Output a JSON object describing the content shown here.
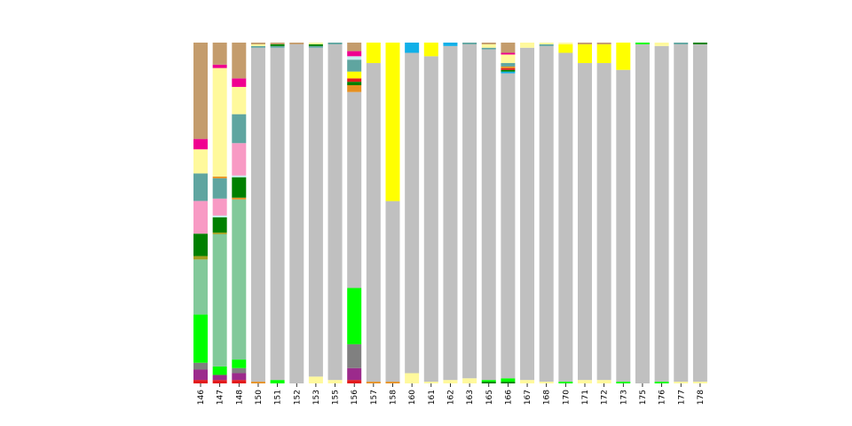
{
  "chart_data": {
    "type": "bar",
    "stacked": true,
    "normalized": true,
    "grid": false,
    "legend": "none",
    "title": "",
    "xlabel": "",
    "ylabel": "",
    "ylim": [
      0,
      1
    ],
    "categories": [
      "146",
      "147",
      "148",
      "150",
      "151",
      "152",
      "153",
      "155",
      "156",
      "157",
      "158",
      "160",
      "161",
      "162",
      "163",
      "165",
      "166",
      "167",
      "168",
      "170",
      "171",
      "172",
      "173",
      "175",
      "176",
      "177",
      "178"
    ],
    "palette": {
      "red": "#e31a1c",
      "purple": "#9c2a8c",
      "gray": "#808080",
      "lime": "#00ff00",
      "mint": "#82c99a",
      "olive": "#a0a020",
      "green": "#008000",
      "orange": "#e69020",
      "pink": "#f89ac4",
      "lightcyan": "#c8f0f0",
      "teal": "#5fa5a0",
      "lightyellow": "#fff99c",
      "yellow": "#ffff00",
      "magenta": "#f00090",
      "tan": "#c49c6c",
      "silver": "#c0c0c0",
      "skyblue": "#10b0e8"
    },
    "segments": [
      [
        [
          "red",
          0.01
        ],
        [
          "purple",
          0.03
        ],
        [
          "gray",
          0.02
        ],
        [
          "lime",
          0.14
        ],
        [
          "mint",
          0.16
        ],
        [
          "olive",
          0.01
        ],
        [
          "green",
          0.065
        ],
        [
          "pink",
          0.095
        ],
        [
          "teal",
          0.08
        ],
        [
          "lightyellow",
          0.07
        ],
        [
          "magenta",
          0.03
        ],
        [
          "tan",
          0.28
        ]
      ],
      [
        [
          "red",
          0.01
        ],
        [
          "purple",
          0.015
        ],
        [
          "lime",
          0.025
        ],
        [
          "mint",
          0.39
        ],
        [
          "olive",
          0.005
        ],
        [
          "green",
          0.045
        ],
        [
          "lightcyan",
          0.005
        ],
        [
          "pink",
          0.05
        ],
        [
          "teal",
          0.06
        ],
        [
          "orange",
          0.005
        ],
        [
          "lightyellow",
          0.32
        ],
        [
          "magenta",
          0.01
        ],
        [
          "tan",
          0.065
        ]
      ],
      [
        [
          "red",
          0.01
        ],
        [
          "purple",
          0.02
        ],
        [
          "gray",
          0.015
        ],
        [
          "lime",
          0.025
        ],
        [
          "mint",
          0.47
        ],
        [
          "orange",
          0.005
        ],
        [
          "green",
          0.06
        ],
        [
          "lightcyan",
          0.005
        ],
        [
          "pink",
          0.095
        ],
        [
          "teal",
          0.085
        ],
        [
          "lightyellow",
          0.08
        ],
        [
          "magenta",
          0.025
        ],
        [
          "tan",
          0.105
        ]
      ],
      [
        [
          "orange",
          0.005
        ],
        [
          "silver",
          0.98
        ],
        [
          "teal",
          0.005
        ],
        [
          "lightyellow",
          0.005
        ],
        [
          "tan",
          0.005
        ]
      ],
      [
        [
          "lime",
          0.01
        ],
        [
          "silver",
          0.975
        ],
        [
          "teal",
          0.005
        ],
        [
          "green",
          0.005
        ],
        [
          "tan",
          0.005
        ]
      ],
      [
        [
          "silver",
          0.995
        ],
        [
          "tan",
          0.005
        ]
      ],
      [
        [
          "lightyellow",
          0.02
        ],
        [
          "silver",
          0.965
        ],
        [
          "teal",
          0.005
        ],
        [
          "green",
          0.005
        ],
        [
          "lightyellow",
          0.005
        ]
      ],
      [
        [
          "lightyellow",
          0.01
        ],
        [
          "silver",
          0.985
        ],
        [
          "teal",
          0.005
        ]
      ],
      [
        [
          "red",
          0.01
        ],
        [
          "purple",
          0.035
        ],
        [
          "gray",
          0.07
        ],
        [
          "lime",
          0.165
        ],
        [
          "silver",
          0.575
        ],
        [
          "orange",
          0.02
        ],
        [
          "green",
          0.01
        ],
        [
          "red",
          0.01
        ],
        [
          "yellow",
          0.02
        ],
        [
          "teal",
          0.035
        ],
        [
          "lightcyan",
          0.01
        ],
        [
          "magenta",
          0.015
        ],
        [
          "tan",
          0.025
        ]
      ],
      [
        [
          "orange",
          0.005
        ],
        [
          "silver",
          0.935
        ],
        [
          "yellow",
          0.06
        ]
      ],
      [
        [
          "orange",
          0.005
        ],
        [
          "silver",
          0.53
        ],
        [
          "yellow",
          0.465
        ]
      ],
      [
        [
          "lightyellow",
          0.03
        ],
        [
          "silver",
          0.94
        ],
        [
          "skyblue",
          0.03
        ]
      ],
      [
        [
          "lightyellow",
          0.005
        ],
        [
          "silver",
          0.955
        ],
        [
          "yellow",
          0.04
        ]
      ],
      [
        [
          "lightyellow",
          0.01
        ],
        [
          "silver",
          0.98
        ],
        [
          "skyblue",
          0.01
        ]
      ],
      [
        [
          "lightyellow",
          0.015
        ],
        [
          "silver",
          0.98
        ],
        [
          "teal",
          0.005
        ]
      ],
      [
        [
          "green",
          0.005
        ],
        [
          "lime",
          0.005
        ],
        [
          "silver",
          0.97
        ],
        [
          "teal",
          0.005
        ],
        [
          "lightyellow",
          0.01
        ],
        [
          "tan",
          0.005
        ]
      ],
      [
        [
          "green",
          0.005
        ],
        [
          "lime",
          0.01
        ],
        [
          "silver",
          0.895
        ],
        [
          "skyblue",
          0.005
        ],
        [
          "green",
          0.005
        ],
        [
          "red",
          0.005
        ],
        [
          "orange",
          0.005
        ],
        [
          "teal",
          0.01
        ],
        [
          "lightyellow",
          0.025
        ],
        [
          "magenta",
          0.005
        ],
        [
          "tan",
          0.03
        ]
      ],
      [
        [
          "lightyellow",
          0.01
        ],
        [
          "silver",
          0.975
        ],
        [
          "lightyellow",
          0.015
        ]
      ],
      [
        [
          "lightyellow",
          0.005
        ],
        [
          "silver",
          0.985
        ],
        [
          "teal",
          0.005
        ],
        [
          "lightyellow",
          0.005
        ]
      ],
      [
        [
          "lime",
          0.005
        ],
        [
          "silver",
          0.965
        ],
        [
          "yellow",
          0.025
        ],
        [
          "lightyellow",
          0.005
        ]
      ],
      [
        [
          "lightyellow",
          0.01
        ],
        [
          "silver",
          0.93
        ],
        [
          "yellow",
          0.055
        ],
        [
          "tan",
          0.005
        ]
      ],
      [
        [
          "lightyellow",
          0.01
        ],
        [
          "silver",
          0.93
        ],
        [
          "yellow",
          0.055
        ],
        [
          "tan",
          0.005
        ]
      ],
      [
        [
          "lime",
          0.005
        ],
        [
          "silver",
          0.915
        ],
        [
          "yellow",
          0.08
        ]
      ],
      [
        [
          "silver",
          0.995
        ],
        [
          "lime",
          0.005
        ]
      ],
      [
        [
          "lime",
          0.005
        ],
        [
          "silver",
          0.985
        ],
        [
          "lightyellow",
          0.01
        ]
      ],
      [
        [
          "lightyellow",
          0.005
        ],
        [
          "silver",
          0.99
        ],
        [
          "teal",
          0.005
        ]
      ],
      [
        [
          "lightyellow",
          0.005
        ],
        [
          "silver",
          0.99
        ],
        [
          "green",
          0.005
        ]
      ]
    ]
  }
}
